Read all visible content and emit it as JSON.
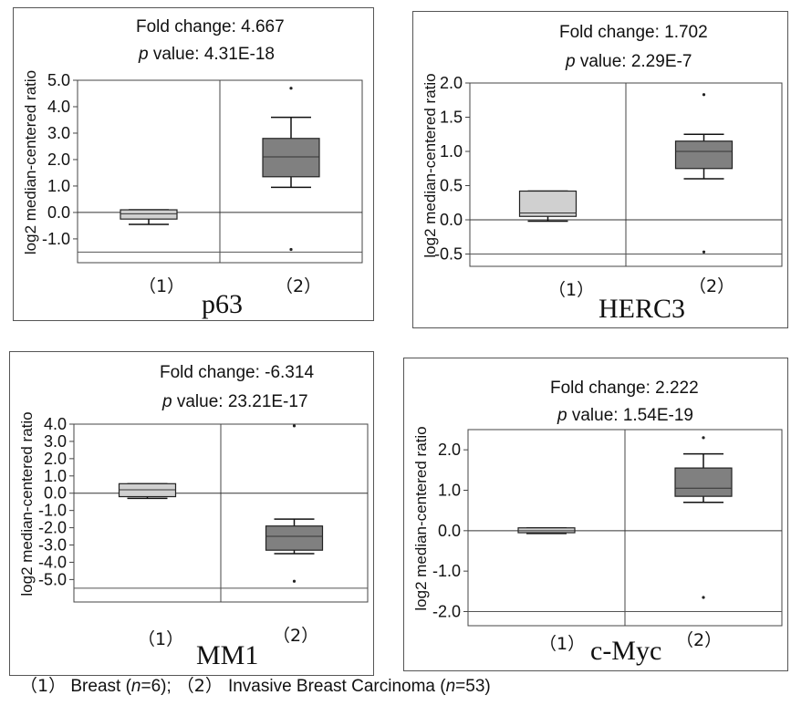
{
  "chart_data": [
    {
      "type": "box",
      "gene": "p63",
      "fold_change_label": "Fold change: 4.667",
      "p_label": "p",
      "p_value_label": " value: 4.31E-18",
      "ylabel": "log2 median-centered ratio",
      "ylim": [
        -1.9,
        5.0
      ],
      "yticks": [
        5.0,
        4.0,
        3.0,
        2.0,
        1.0,
        0.0,
        -1.0
      ],
      "ytick_labels": [
        "5.0",
        "4.0",
        "3.0",
        "2.0",
        "1.0",
        "0.0",
        "-1.0"
      ],
      "categories": [
        "（1）",
        "（2）"
      ],
      "boxes": [
        {
          "whisker_low": -0.45,
          "q1": -0.25,
          "median": -0.05,
          "q3": 0.1,
          "whisker_high": 0.1,
          "outliers": [],
          "fill": "#d0d0d0"
        },
        {
          "whisker_low": 0.95,
          "q1": 1.35,
          "median": 2.1,
          "q3": 2.8,
          "whisker_high": 3.6,
          "outliers": [
            4.7,
            -1.4
          ],
          "fill": "#808080"
        }
      ],
      "hlines": [
        0.0,
        -1.5
      ]
    },
    {
      "type": "box",
      "gene": "HERC3",
      "fold_change_label": "Fold change: 1.702",
      "p_label": "p",
      "p_value_label": " value: 2.29E-7",
      "ylabel": "log2 median-centered ratio",
      "ylim": [
        -0.68,
        2.0
      ],
      "yticks": [
        2.0,
        1.5,
        1.0,
        0.5,
        0.0,
        -0.5
      ],
      "ytick_labels": [
        "2.0",
        "1.5",
        "1.0",
        "0.5",
        "0.0",
        "-0.5"
      ],
      "categories": [
        "（1）",
        "（2）"
      ],
      "boxes": [
        {
          "whisker_low": -0.02,
          "q1": 0.05,
          "median": 0.1,
          "q3": 0.42,
          "whisker_high": 0.42,
          "outliers": [],
          "fill": "#d0d0d0"
        },
        {
          "whisker_low": 0.6,
          "q1": 0.75,
          "median": 1.0,
          "q3": 1.15,
          "whisker_high": 1.25,
          "outliers": [
            1.83,
            -0.47
          ],
          "fill": "#808080"
        }
      ],
      "hlines": [
        0.0,
        -0.5
      ]
    },
    {
      "type": "box",
      "gene": "MM1",
      "fold_change_label": "Fold change: -6.314",
      "p_label": "p",
      "p_value_label": " value: 23.21E-17",
      "ylabel": "log2 median-centered ratio",
      "ylim": [
        -6.3,
        4.0
      ],
      "yticks": [
        4.0,
        3.0,
        2.0,
        1.0,
        0.0,
        -1.0,
        -2.0,
        -3.0,
        -4.0,
        -5.0
      ],
      "ytick_labels": [
        "4.0",
        "3.0",
        "2.0",
        "1.0",
        "0.0",
        "-1.0",
        "-2.0",
        "-3.0",
        "-4.0",
        "-5.0"
      ],
      "categories": [
        "（1）",
        "（2）"
      ],
      "boxes": [
        {
          "whisker_low": -0.3,
          "q1": -0.2,
          "median": 0.2,
          "q3": 0.55,
          "whisker_high": 0.55,
          "outliers": [],
          "fill": "#d0d0d0"
        },
        {
          "whisker_low": -3.5,
          "q1": -3.3,
          "median": -2.5,
          "q3": -1.9,
          "whisker_high": -1.5,
          "outliers": [
            3.9,
            -5.1
          ],
          "fill": "#808080"
        }
      ],
      "hlines": [
        0.0,
        -5.5
      ]
    },
    {
      "type": "box",
      "gene": "c-Myc",
      "fold_change_label": "Fold change: 2.222",
      "p_label": "p",
      "p_value_label": " value: 1.54E-19",
      "ylabel": "log2 median-centered ratio",
      "ylim": [
        -2.35,
        2.5
      ],
      "yticks": [
        2.0,
        1.0,
        0.0,
        -1.0,
        -2.0
      ],
      "ytick_labels": [
        "2.0",
        "1.0",
        "0.0",
        "-1.0",
        "-2.0"
      ],
      "categories": [
        "（1）",
        "（2）"
      ],
      "boxes": [
        {
          "whisker_low": -0.07,
          "q1": -0.05,
          "median": 0.0,
          "q3": 0.07,
          "whisker_high": 0.07,
          "outliers": [],
          "fill": "#d0d0d0"
        },
        {
          "whisker_low": 0.7,
          "q1": 0.85,
          "median": 1.05,
          "q3": 1.55,
          "whisker_high": 1.9,
          "outliers": [
            2.3,
            -1.65
          ],
          "fill": "#808080"
        }
      ],
      "hlines": [
        0.0,
        -2.0
      ]
    }
  ],
  "legend": {
    "g1_mark": "（1）",
    "g1_name": " Breast (",
    "g1_n": "n",
    "g1_count": "=6);",
    "g2_mark": " （2） ",
    "g2_name": " Invasive Breast Carcinoma (",
    "g2_n": "n",
    "g2_count": "=53)"
  }
}
